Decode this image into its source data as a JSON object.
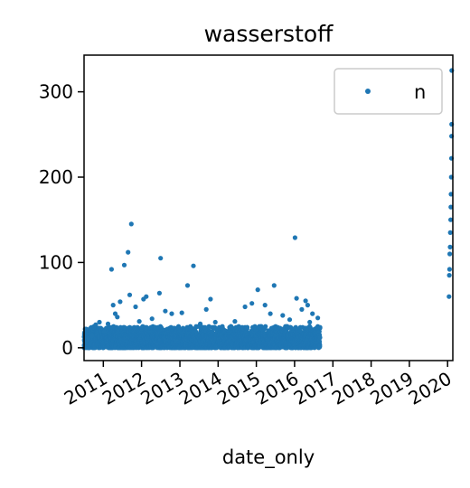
{
  "chart_data": {
    "type": "scatter",
    "title": "wasserstoff",
    "xlabel": "date_only",
    "ylabel": "",
    "legend": {
      "placement": "top-right",
      "entries": [
        "n"
      ]
    },
    "grid": false,
    "x_type": "date",
    "xlim": [
      "2010-07-01",
      "2020-02-20"
    ],
    "ylim": [
      -15,
      343
    ],
    "x_ticks": [
      "2011",
      "2012",
      "2013",
      "2014",
      "2015",
      "2016",
      "2017",
      "2018",
      "2019",
      "2020"
    ],
    "y_ticks": [
      0,
      100,
      200,
      300
    ],
    "marker_color": "#1f77b4",
    "series": [
      {
        "name": "n",
        "points": [
          [
            "2010-08-10",
            11
          ],
          [
            "2010-09-15",
            14
          ],
          [
            "2010-10-20",
            27
          ],
          [
            "2010-11-25",
            30
          ],
          [
            "2011-01-10",
            19
          ],
          [
            "2011-02-15",
            28
          ],
          [
            "2011-03-20",
            92
          ],
          [
            "2011-04-05",
            50
          ],
          [
            "2011-04-25",
            40
          ],
          [
            "2011-05-15",
            36
          ],
          [
            "2011-06-10",
            54
          ],
          [
            "2011-07-20",
            97
          ],
          [
            "2011-08-25",
            112
          ],
          [
            "2011-09-10",
            62
          ],
          [
            "2011-09-25",
            145
          ],
          [
            "2011-11-05",
            48
          ],
          [
            "2011-12-10",
            31
          ],
          [
            "2012-01-20",
            57
          ],
          [
            "2012-02-15",
            60
          ],
          [
            "2012-04-10",
            34
          ],
          [
            "2012-06-20",
            64
          ],
          [
            "2012-07-01",
            105
          ],
          [
            "2012-08-15",
            43
          ],
          [
            "2012-10-15",
            40
          ],
          [
            "2013-01-20",
            41
          ],
          [
            "2013-03-15",
            73
          ],
          [
            "2013-05-10",
            96
          ],
          [
            "2013-07-15",
            28
          ],
          [
            "2013-09-10",
            45
          ],
          [
            "2013-10-20",
            57
          ],
          [
            "2013-12-05",
            30
          ],
          [
            "2014-02-10",
            25
          ],
          [
            "2014-06-10",
            31
          ],
          [
            "2014-09-15",
            48
          ],
          [
            "2014-11-20",
            52
          ],
          [
            "2015-01-15",
            68
          ],
          [
            "2015-03-25",
            50
          ],
          [
            "2015-05-15",
            40
          ],
          [
            "2015-06-20",
            73
          ],
          [
            "2015-09-10",
            38
          ],
          [
            "2015-11-15",
            33
          ],
          [
            "2016-01-20",
            58
          ],
          [
            "2016-03-10",
            45
          ],
          [
            "2016-04-15",
            55
          ],
          [
            "2016-05-05",
            50
          ],
          [
            "2016-05-25",
            30
          ],
          [
            "2016-06-20",
            40
          ],
          [
            "2016-01-05",
            129
          ],
          [
            "2016-08-10",
            35
          ],
          [
            "2020-01-15",
            60
          ],
          [
            "2020-01-17",
            85
          ],
          [
            "2020-01-20",
            92
          ],
          [
            "2020-01-22",
            110
          ],
          [
            "2020-01-25",
            118
          ],
          [
            "2020-01-27",
            135
          ],
          [
            "2020-01-30",
            150
          ],
          [
            "2020-02-01",
            165
          ],
          [
            "2020-02-03",
            180
          ],
          [
            "2020-02-05",
            200
          ],
          [
            "2020-02-07",
            222
          ],
          [
            "2020-02-08",
            248
          ],
          [
            "2020-02-09",
            262
          ],
          [
            "2020-02-10",
            325
          ]
        ]
      }
    ],
    "dense_band": {
      "note": "continuous cluster of daily points",
      "start": "2010-07-01",
      "end": "2016-08-31",
      "typical_range": [
        0,
        25
      ]
    }
  }
}
